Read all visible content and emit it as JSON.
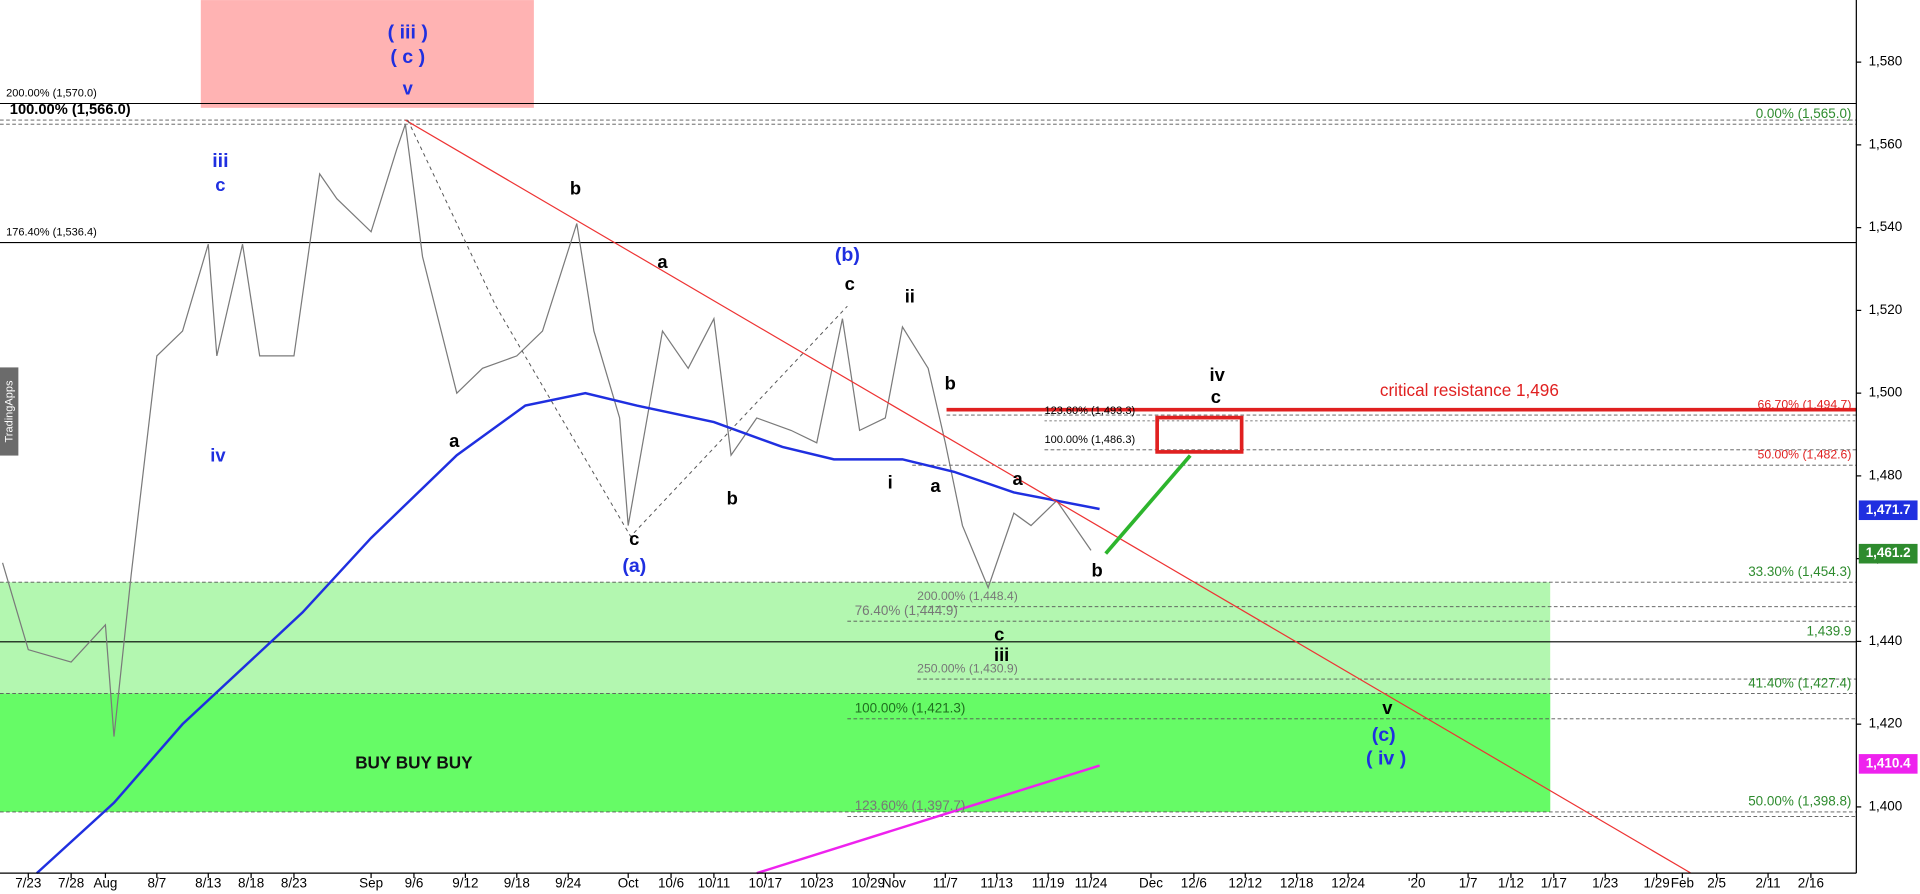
{
  "chart_data": {
    "type": "line",
    "side_label": "TradingApps",
    "xlim": [
      -3.3,
      213.3
    ],
    "xticks": [
      {
        "value": 0,
        "label": "7/23"
      },
      {
        "value": 5,
        "label": "7/28"
      },
      {
        "value": 9,
        "label": "Aug"
      },
      {
        "value": 15,
        "label": "8/7"
      },
      {
        "value": 21,
        "label": "8/13"
      },
      {
        "value": 26,
        "label": "8/18"
      },
      {
        "value": 31,
        "label": "8/23"
      },
      {
        "value": 40,
        "label": "Sep"
      },
      {
        "value": 45,
        "label": "9/6"
      },
      {
        "value": 51,
        "label": "9/12"
      },
      {
        "value": 57,
        "label": "9/18"
      },
      {
        "value": 63,
        "label": "9/24"
      },
      {
        "value": 70,
        "label": "Oct"
      },
      {
        "value": 75,
        "label": "10/6"
      },
      {
        "value": 80,
        "label": "10/11"
      },
      {
        "value": 86,
        "label": "10/17"
      },
      {
        "value": 92,
        "label": "10/23"
      },
      {
        "value": 98,
        "label": "10/29"
      },
      {
        "value": 101,
        "label": "Nov"
      },
      {
        "value": 107,
        "label": "11/7"
      },
      {
        "value": 113,
        "label": "11/13"
      },
      {
        "value": 119,
        "label": "11/19"
      },
      {
        "value": 124,
        "label": "11/24"
      },
      {
        "value": 131,
        "label": "Dec"
      },
      {
        "value": 136,
        "label": "12/6"
      },
      {
        "value": 142,
        "label": "12/12"
      },
      {
        "value": 148,
        "label": "12/18"
      },
      {
        "value": 154,
        "label": "12/24"
      },
      {
        "value": 162,
        "label": "'20"
      },
      {
        "value": 168,
        "label": "1/7"
      },
      {
        "value": 173,
        "label": "1/12"
      },
      {
        "value": 178,
        "label": "1/17"
      },
      {
        "value": 184,
        "label": "1/23"
      },
      {
        "value": 190,
        "label": "1/29"
      },
      {
        "value": 193,
        "label": "Feb"
      },
      {
        "value": 197,
        "label": "2/5"
      },
      {
        "value": 203,
        "label": "2/11"
      },
      {
        "value": 208,
        "label": "2/16"
      }
    ],
    "ylim": [
      1384,
      1595
    ],
    "yticks": [
      {
        "value": 1400,
        "label": "1,400"
      },
      {
        "value": 1420,
        "label": "1,420"
      },
      {
        "value": 1440,
        "label": "1,440"
      },
      {
        "value": 1460,
        "label": "1,460"
      },
      {
        "value": 1480,
        "label": "1,480"
      },
      {
        "value": 1500,
        "label": "1,500"
      },
      {
        "value": 1520,
        "label": "1,520"
      },
      {
        "value": 1540,
        "label": "1,540"
      },
      {
        "value": 1560,
        "label": "1,560"
      },
      {
        "value": 1580,
        "label": "1,580"
      }
    ],
    "series": [
      {
        "color": "#7a7a7a",
        "x": [
          -3,
          0,
          5,
          9,
          10,
          12,
          15,
          18,
          21,
          22,
          25,
          27,
          31,
          34,
          36,
          40,
          43,
          44,
          46,
          50,
          53,
          57,
          60,
          64,
          66,
          69,
          70,
          74,
          77,
          80,
          82,
          85,
          89,
          92,
          95,
          97,
          100,
          102,
          105,
          107,
          109,
          112,
          115,
          117,
          120,
          124
        ],
        "values": [
          1459,
          1438,
          1435,
          1444,
          1417,
          1456,
          1509,
          1515,
          1536,
          1509,
          1536,
          1509,
          1509,
          1553,
          1547,
          1539,
          1559,
          1565,
          1533,
          1500,
          1506,
          1509,
          1515,
          1541,
          1515,
          1494,
          1468,
          1515,
          1506,
          1518,
          1485,
          1494,
          1491,
          1488,
          1518,
          1491,
          1494,
          1516,
          1506,
          1488,
          1468,
          1453,
          1471,
          1468,
          1474,
          1462
        ]
      },
      {
        "color": "#1f2fe0",
        "x": [
          1,
          10,
          18,
          32,
          40,
          50,
          58,
          65,
          71,
          80,
          88,
          94,
          102,
          108,
          115,
          125
        ],
        "values": [
          1384,
          1401,
          1420,
          1447,
          1465,
          1485,
          1497,
          1500,
          1497,
          1493,
          1487,
          1484,
          1484,
          1481,
          1476,
          1472
        ]
      },
      {
        "color": "#ee22ee",
        "x": [
          85,
          125
        ],
        "values": [
          1384,
          1410
        ]
      },
      {
        "color": "#ee3333",
        "x": [
          44,
          194
        ],
        "values": [
          1566,
          1384
        ]
      }
    ],
    "zones": [
      {
        "from": 1398.8,
        "to": 1454.3,
        "color": "#b3f7b0"
      },
      {
        "from": 1398.8,
        "to": 1427.4,
        "color": "#66fb66"
      }
    ],
    "levels": [
      {
        "label": "200.00% (1,570.0)",
        "value": 1570,
        "color": "#000000"
      },
      {
        "label": "100.00% (1,566.0)",
        "value": 1566,
        "color": "#000000"
      },
      {
        "label": "0.00% (1,565.0)",
        "value": 1565,
        "color": "#2e8b2e"
      },
      {
        "label": "176.40% (1,536.4)",
        "value": 1536.4,
        "color": "#000000"
      },
      {
        "label": "66.70% (1,494.7)",
        "value": 1494.7,
        "color": "#e02020"
      },
      {
        "label": "123.60% (1,493.3)",
        "value": 1493.3,
        "color": "#000000"
      },
      {
        "label": "100.00% (1,486.3)",
        "value": 1486.3,
        "color": "#000000"
      },
      {
        "label": "50.00% (1,482.6)",
        "value": 1482.6,
        "color": "#e02020"
      },
      {
        "label": "33.30% (1,454.3)",
        "value": 1454.3,
        "color": "#2e8b2e"
      },
      {
        "label": "200.00% (1,448.4)",
        "value": 1448.4,
        "color": "#777777"
      },
      {
        "label": "76.40% (1,444.9)",
        "value": 1444.9,
        "color": "#777777"
      },
      {
        "label": "1,439.9",
        "value": 1439.9,
        "color": "#2e8b2e"
      },
      {
        "label": "250.00% (1,430.9)",
        "value": 1430.9,
        "color": "#777777"
      },
      {
        "label": "41.40% (1,427.4)",
        "value": 1427.4,
        "color": "#2e8b2e"
      },
      {
        "label": "100.00% (1,421.3)",
        "value": 1421.3,
        "color": "#1f6e1f"
      },
      {
        "label": "123.60% (1,397.7)",
        "value": 1397.7,
        "color": "#777777"
      },
      {
        "label": "50.00% (1,398.8)",
        "value": 1398.8,
        "color": "#2e8b2e"
      }
    ],
    "resistance": {
      "label": "critical resistance 1,496",
      "value": 1496,
      "color": "#e02020"
    },
    "zone_label": "BUY BUY BUY",
    "price_tags": [
      {
        "label": "1,471.7",
        "value": 1471.7,
        "color": "#1f2fe0"
      },
      {
        "label": "1,461.2",
        "value": 1461.2,
        "color": "#2e8b2e"
      },
      {
        "label": "1,410.4",
        "value": 1410.4,
        "color": "#ee22ee"
      }
    ],
    "wave_labels": [
      {
        "text": "( iii )",
        "color": "#1f2fe0"
      },
      {
        "text": "( c )",
        "color": "#1f2fe0"
      },
      {
        "text": "v",
        "color": "#1f2fe0"
      },
      {
        "text": "iii",
        "color": "#1f2fe0"
      },
      {
        "text": "c",
        "color": "#1f2fe0"
      },
      {
        "text": "iv",
        "color": "#1f2fe0"
      },
      {
        "text": "b",
        "color": "#000000"
      },
      {
        "text": "a",
        "color": "#000000"
      },
      {
        "text": "a",
        "color": "#000000"
      },
      {
        "text": "c",
        "color": "#000000"
      },
      {
        "text": "(a)",
        "color": "#1f2fe0"
      },
      {
        "text": "(b)",
        "color": "#1f2fe0"
      },
      {
        "text": "c",
        "color": "#000000"
      },
      {
        "text": "b",
        "color": "#000000"
      },
      {
        "text": "ii",
        "color": "#000000"
      },
      {
        "text": "i",
        "color": "#000000"
      },
      {
        "text": "b",
        "color": "#000000"
      },
      {
        "text": "a",
        "color": "#000000"
      },
      {
        "text": "a",
        "color": "#000000"
      },
      {
        "text": "b",
        "color": "#000000"
      },
      {
        "text": "c",
        "color": "#000000"
      },
      {
        "text": "iii",
        "color": "#000000"
      },
      {
        "text": "iv",
        "color": "#000000"
      },
      {
        "text": "c",
        "color": "#000000"
      },
      {
        "text": "v",
        "color": "#000000"
      },
      {
        "text": "(c)",
        "color": "#1f2fe0"
      },
      {
        "text": "( iv )",
        "color": "#1f2fe0"
      }
    ]
  }
}
